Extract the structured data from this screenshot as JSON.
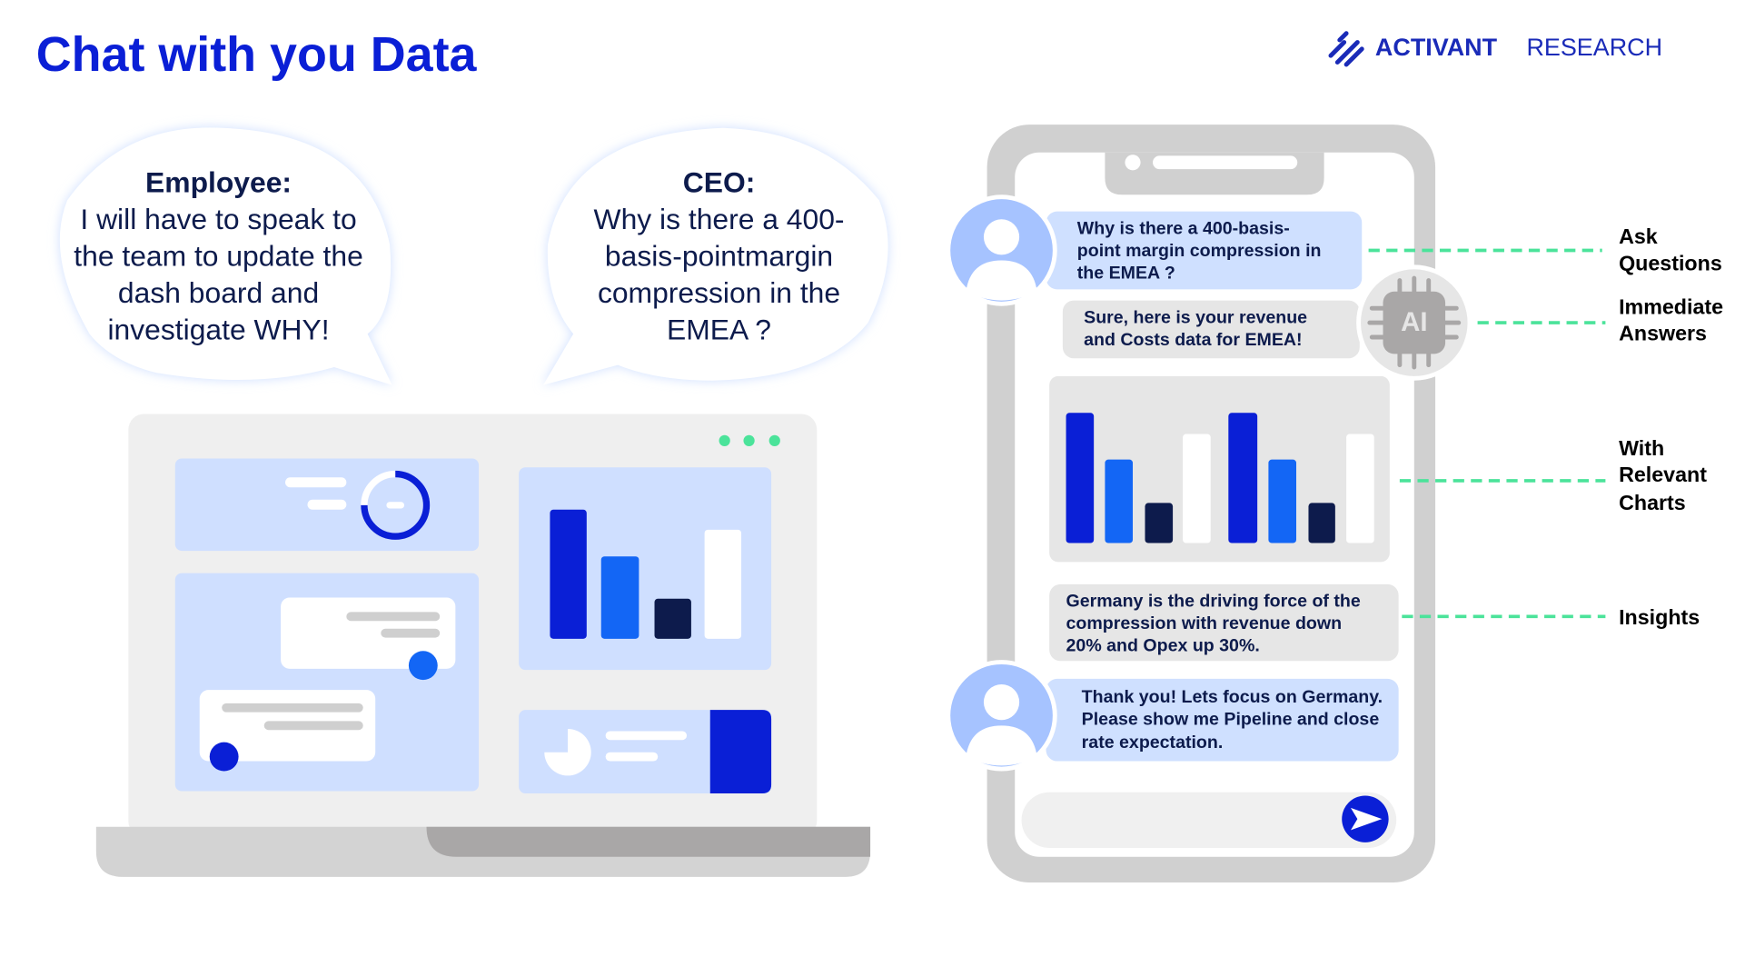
{
  "header": {
    "title": "Chat with you Data",
    "brand": {
      "name": "ACTIVANT",
      "suffix": "RESEARCH"
    }
  },
  "bubbles": [
    {
      "speaker": "Employee:",
      "lines": [
        "I will have to speak to",
        "the team to update the",
        "dash board and",
        "investigate WHY!"
      ]
    },
    {
      "speaker": "CEO:",
      "lines": [
        "Why is there a 400-",
        "basis-pointmargin",
        "compression in the",
        "EMEA ?"
      ]
    }
  ],
  "chat": {
    "ai_icon": "AI",
    "messages": [
      {
        "lines": [
          "Why is there a 400-basis-",
          "point margin compression in",
          "the EMEA ?"
        ]
      },
      {
        "lines": [
          "Sure, here is your revenue",
          "and Costs data for EMEA!"
        ]
      },
      {
        "lines": [
          "Germany is the driving force of the",
          "compression with revenue down",
          "20% and Opex up 30%."
        ]
      },
      {
        "lines": [
          "Thank you! Lets focus on Germany.",
          "Please show me Pipeline and close",
          "rate expectation."
        ]
      }
    ]
  },
  "labels": [
    {
      "lines": [
        "Ask",
        "Questions"
      ]
    },
    {
      "lines": [
        "Immediate",
        "Answers"
      ]
    },
    {
      "lines": [
        "With",
        "Relevant",
        "Charts"
      ]
    },
    {
      "lines": [
        "Insights"
      ]
    }
  ]
}
